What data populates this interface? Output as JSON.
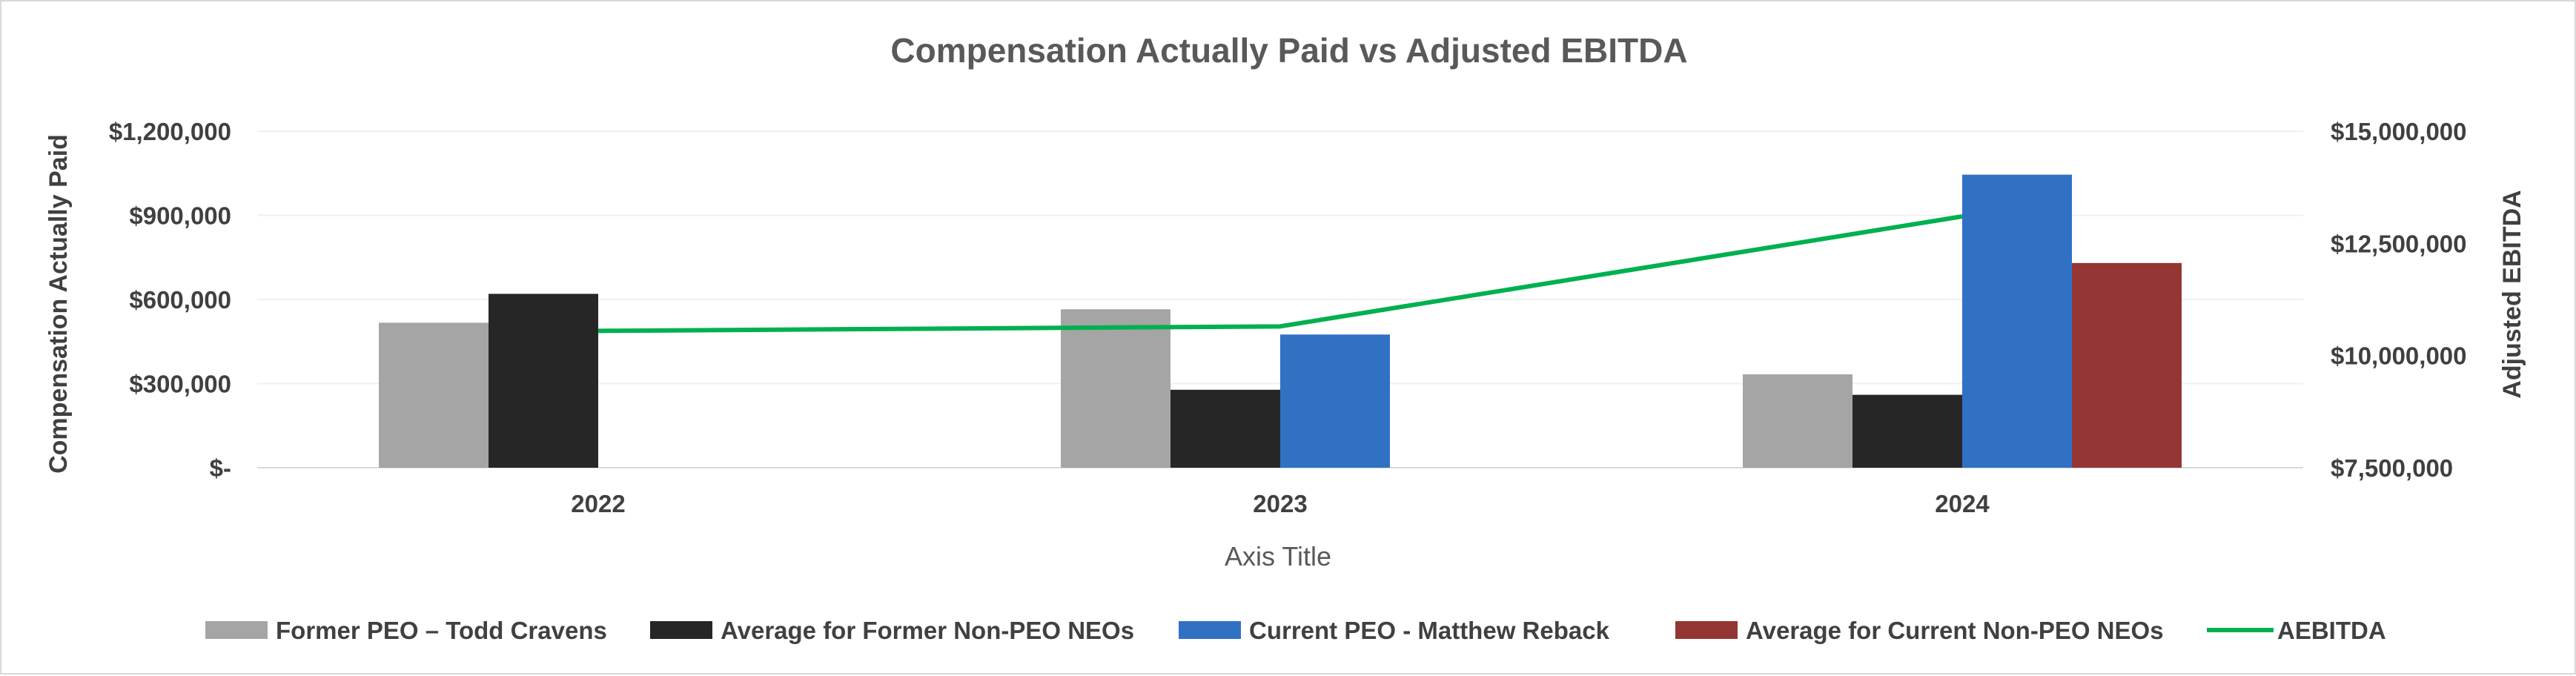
{
  "chart_data": {
    "type": "bar",
    "title": "Compensation Actually Paid vs Adjusted EBITDA",
    "xlabel": "Axis Title",
    "ylabel": "Compensation Actually Paid",
    "y2label": "Adjusted EBITDA",
    "categories": [
      "2022",
      "2023",
      "2024"
    ],
    "ylim": [
      0,
      1200000
    ],
    "y_ticks": [
      0,
      300000,
      600000,
      900000,
      1200000
    ],
    "y_tick_labels": [
      "$-",
      "$300,000",
      "$600,000",
      "$900,000",
      "$1,200,000"
    ],
    "y2lim": [
      7500000,
      15000000
    ],
    "y2_ticks": [
      7500000,
      10000000,
      12500000,
      15000000
    ],
    "y2_tick_labels": [
      "$7,500,000",
      "$10,000,000",
      "$12,500,000",
      "$15,000,000"
    ],
    "grid": true,
    "legend_position": "bottom",
    "series": [
      {
        "name": "Former PEO – Todd Cravens",
        "type": "bar",
        "axis": "left",
        "color": "#a5a5a5",
        "values": [
          517000,
          565000,
          333000
        ]
      },
      {
        "name": "Average for Former Non-PEO NEOs",
        "type": "bar",
        "axis": "left",
        "color": "#262626",
        "values": [
          620000,
          278000,
          260000
        ]
      },
      {
        "name": "Current PEO  - Matthew Reback",
        "type": "bar",
        "axis": "left",
        "color": "#3071c4",
        "values": [
          null,
          475000,
          1045000
        ]
      },
      {
        "name": "Average for Current Non-PEO NEOs",
        "type": "bar",
        "axis": "left",
        "color": "#943634",
        "values": [
          null,
          null,
          730000
        ]
      },
      {
        "name": "AEBITDA",
        "type": "line",
        "axis": "right",
        "color": "#00b050",
        "values": [
          10550000,
          10650000,
          13100000
        ]
      }
    ]
  }
}
